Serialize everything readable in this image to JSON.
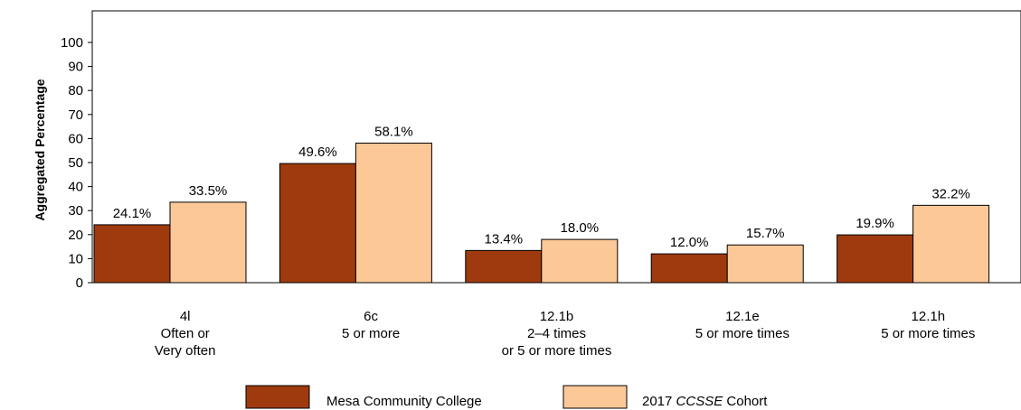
{
  "chart_data": {
    "type": "bar",
    "ylabel": "Aggregated Percentage",
    "ylim": [
      0,
      100
    ],
    "yticks": [
      0,
      10,
      20,
      30,
      40,
      50,
      60,
      70,
      80,
      90,
      100
    ],
    "categories": [
      [
        "4l",
        "Often or",
        "Very often"
      ],
      [
        "6c",
        "5 or more"
      ],
      [
        "12.1b",
        "2–4 times",
        "or 5 or more times"
      ],
      [
        "12.1e",
        "5 or more times"
      ],
      [
        "12.1h",
        "5 or more times"
      ]
    ],
    "series": [
      {
        "name": "Mesa Community College",
        "color": "#9e3a0e",
        "values": [
          24.1,
          49.6,
          13.4,
          12.0,
          19.9
        ],
        "labels": [
          "24.1%",
          "49.6%",
          "13.4%",
          "12.0%",
          "19.9%"
        ]
      },
      {
        "name": "2017 CCSSE Cohort",
        "name_parts": [
          "2017 ",
          "CCSSE",
          " Cohort"
        ],
        "color": "#fcc898",
        "values": [
          33.5,
          58.1,
          18.0,
          15.7,
          32.2
        ],
        "labels": [
          "33.5%",
          "58.1%",
          "18.0%",
          "15.7%",
          "32.2%"
        ]
      }
    ],
    "grid": false,
    "legend_position": "bottom"
  }
}
